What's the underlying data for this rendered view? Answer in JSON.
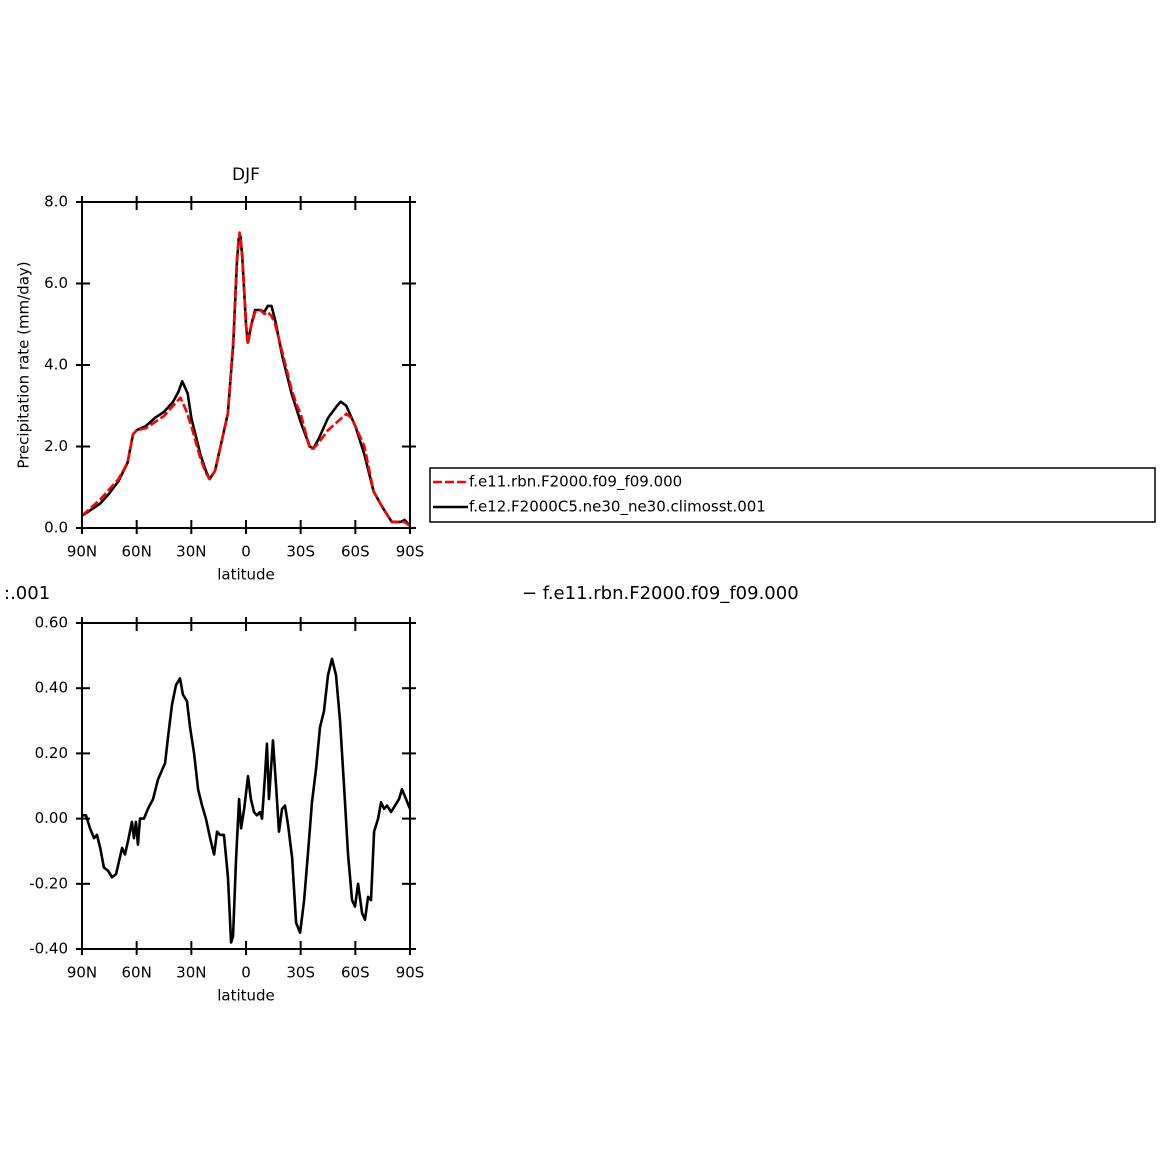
{
  "chart_data": [
    {
      "type": "line",
      "title": "DJF",
      "x_label": "latitude",
      "y_label": "Precipitation rate (mm/day)",
      "xlim": [
        90,
        -90
      ],
      "xticks": [
        {
          "value": 90,
          "label": "90N"
        },
        {
          "value": 60,
          "label": "60N"
        },
        {
          "value": 30,
          "label": "30N"
        },
        0,
        {
          "value": -30,
          "label": "30S"
        },
        {
          "value": -60,
          "label": "60S"
        },
        {
          "value": -90,
          "label": "90S"
        }
      ],
      "ylim": [
        0,
        8
      ],
      "yticks": [
        {
          "value": 0,
          "label": "0.0"
        },
        {
          "value": 2,
          "label": "2.0"
        },
        {
          "value": 4,
          "label": "4.0"
        },
        {
          "value": 6,
          "label": "6.0"
        },
        {
          "value": 8,
          "label": "8.0"
        }
      ],
      "legend": true,
      "series": [
        {
          "name": "f.e11.rbn.F2000.f09_f09.000",
          "color": "#ff0000",
          "dash": true,
          "x": [
            90,
            85,
            80,
            75,
            70,
            65,
            62,
            60,
            55,
            50,
            45,
            40,
            36,
            33,
            30,
            25,
            22,
            20,
            17,
            15,
            10,
            7,
            5,
            3.5,
            2,
            0,
            -1,
            -3,
            -5,
            -8,
            -10,
            -12,
            -14,
            -16,
            -20,
            -25,
            -28,
            -30,
            -35,
            -37,
            -40,
            -45,
            -50,
            -55,
            -58,
            -60,
            -65,
            -70,
            -75,
            -80,
            -85,
            -87,
            -90
          ],
          "values": [
            0.3,
            0.5,
            0.7,
            0.95,
            1.2,
            1.6,
            2.3,
            2.4,
            2.45,
            2.6,
            2.75,
            3.0,
            3.2,
            2.9,
            2.5,
            1.7,
            1.35,
            1.2,
            1.4,
            1.8,
            2.8,
            4.6,
            6.6,
            7.25,
            6.7,
            5.0,
            4.5,
            5.0,
            5.3,
            5.35,
            5.25,
            5.3,
            5.2,
            5.0,
            4.3,
            3.4,
            3.0,
            2.8,
            1.95,
            1.95,
            2.1,
            2.4,
            2.6,
            2.8,
            2.7,
            2.5,
            2.0,
            0.9,
            0.5,
            0.15,
            0.15,
            0.15,
            0.05
          ]
        },
        {
          "name": "f.e12.F2000C5.ne30_ne30.climosst.001",
          "color": "#000000",
          "dash": false,
          "x": [
            90,
            85,
            80,
            75,
            70,
            65,
            62,
            60,
            55,
            50,
            45,
            40,
            37,
            35,
            32,
            30,
            25,
            22,
            20,
            17,
            15,
            10,
            7,
            5,
            4,
            3,
            2,
            0,
            -1,
            -3,
            -5,
            -8,
            -10,
            -12,
            -14,
            -16,
            -20,
            -25,
            -30,
            -35,
            -37,
            -40,
            -45,
            -50,
            -52,
            -55,
            -60,
            -65,
            -70,
            -75,
            -80,
            -85,
            -87,
            -90
          ],
          "values": [
            0.3,
            0.45,
            0.6,
            0.85,
            1.15,
            1.6,
            2.3,
            2.4,
            2.5,
            2.7,
            2.85,
            3.1,
            3.35,
            3.6,
            3.3,
            2.7,
            1.8,
            1.4,
            1.2,
            1.4,
            1.8,
            2.8,
            4.5,
            6.5,
            7.1,
            7.15,
            6.6,
            5.0,
            4.55,
            5.0,
            5.35,
            5.35,
            5.3,
            5.45,
            5.45,
            5.1,
            4.2,
            3.3,
            2.6,
            2.0,
            1.95,
            2.2,
            2.7,
            3.0,
            3.1,
            3.0,
            2.5,
            1.8,
            0.9,
            0.5,
            0.15,
            0.15,
            0.2,
            0.05
          ]
        }
      ]
    },
    {
      "type": "line",
      "title_left": ":.001",
      "title_right": "− f.e11.rbn.F2000.f09_f09.000",
      "x_label": "latitude",
      "xlim": [
        90,
        -90
      ],
      "xticks": [
        {
          "value": 90,
          "label": "90N"
        },
        {
          "value": 60,
          "label": "60N"
        },
        {
          "value": 30,
          "label": "30N"
        },
        0,
        {
          "value": -30,
          "label": "30S"
        },
        {
          "value": -60,
          "label": "60S"
        },
        {
          "value": -90,
          "label": "90S"
        }
      ],
      "ylim": [
        -0.4,
        0.6
      ],
      "yticks": [
        {
          "value": -0.4,
          "label": "-0.40"
        },
        {
          "value": -0.2,
          "label": "-0.20"
        },
        {
          "value": 0,
          "label": "0.00"
        },
        {
          "value": 0.2,
          "label": "0.20"
        },
        {
          "value": 0.4,
          "label": "0.40"
        },
        {
          "value": 0.6,
          "label": "0.60"
        }
      ],
      "legend": false,
      "series": [
        {
          "color": "#000000",
          "dash": false,
          "x": [
            90,
            87.8,
            85.6,
            83.4,
            81.8,
            80,
            78,
            75.7,
            73.5,
            71.3,
            68,
            66.4,
            64.8,
            62.6,
            61.5,
            60.4,
            59.3,
            58.2,
            56,
            53.8,
            51,
            48.3,
            46,
            44.4,
            42.8,
            40.6,
            38.4,
            36.2,
            34.6,
            32.4,
            30.7,
            28.5,
            26.3,
            24.1,
            22,
            19.7,
            17.5,
            15.9,
            14.3,
            12.1,
            9.9,
            8.2,
            7.1,
            5.5,
            3.8,
            2.7,
            1,
            -1.1,
            -2.7,
            -4.4,
            -6,
            -7.7,
            -8.8,
            -10.4,
            -11.5,
            -12.6,
            -13.7,
            -14.8,
            -16.5,
            -18.1,
            -19.8,
            -21.4,
            -23.1,
            -25.3,
            -27.5,
            -29.7,
            -31.9,
            -34.1,
            -36.2,
            -38.4,
            -40.6,
            -42.8,
            -45,
            -47.2,
            -49.4,
            -51.6,
            -53.8,
            -56,
            -58.2,
            -59.8,
            -61.5,
            -63.7,
            -65.3,
            -67,
            -68.6,
            -70.3,
            -72.5,
            -74.1,
            -75.8,
            -77.4,
            -79.6,
            -81.8,
            -84,
            -85.6,
            -87.8,
            -90
          ],
          "values": [
            0.01,
            0.01,
            -0.03,
            -0.06,
            -0.05,
            -0.09,
            -0.15,
            -0.16,
            -0.18,
            -0.17,
            -0.09,
            -0.11,
            -0.07,
            -0.01,
            -0.06,
            -0.01,
            -0.08,
            0,
            0,
            0.03,
            0.06,
            0.12,
            0.15,
            0.17,
            0.25,
            0.35,
            0.41,
            0.43,
            0.38,
            0.36,
            0.28,
            0.2,
            0.09,
            0.04,
            0,
            -0.06,
            -0.11,
            -0.04,
            -0.05,
            -0.05,
            -0.18,
            -0.38,
            -0.36,
            -0.13,
            0.06,
            -0.03,
            0.03,
            0.13,
            0.06,
            0.02,
            0.01,
            0.02,
            0,
            0.13,
            0.23,
            0.06,
            0.15,
            0.24,
            0.1,
            -0.04,
            0.03,
            0.04,
            -0.02,
            -0.12,
            -0.32,
            -0.35,
            -0.25,
            -0.1,
            0.05,
            0.15,
            0.28,
            0.33,
            0.44,
            0.49,
            0.44,
            0.3,
            0.1,
            -0.11,
            -0.25,
            -0.27,
            -0.2,
            -0.29,
            -0.31,
            -0.24,
            -0.25,
            -0.04,
            0,
            0.05,
            0.03,
            0.04,
            0.02,
            0.04,
            0.06,
            0.09,
            0.06,
            0.03
          ]
        }
      ]
    }
  ]
}
